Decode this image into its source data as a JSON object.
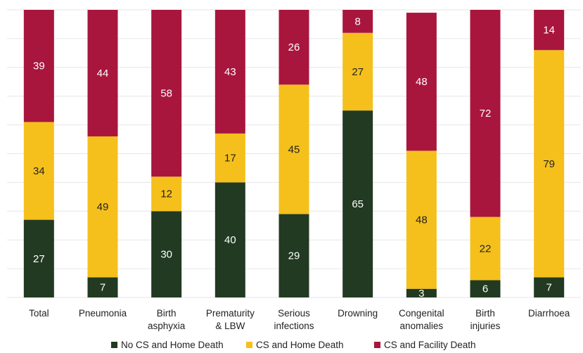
{
  "chart_data": {
    "type": "bar",
    "stacked": true,
    "normalized": true,
    "categories": [
      [
        "Total"
      ],
      [
        "Pneumonia"
      ],
      [
        "Birth",
        "asphyxia"
      ],
      [
        "Prematurity",
        "& LBW"
      ],
      [
        "Serious",
        "infections"
      ],
      [
        "Drowning"
      ],
      [
        "Congenital",
        "anomalies"
      ],
      [
        "Birth",
        "injuries"
      ],
      [
        "Diarrhoea"
      ]
    ],
    "series": [
      {
        "name": "No CS and Home Death",
        "color": "#213a21",
        "values": [
          27,
          7,
          30,
          40,
          29,
          65,
          3,
          6,
          7
        ]
      },
      {
        "name": "CS and Home Death",
        "color": "#f5c01c",
        "values": [
          34,
          49,
          12,
          17,
          45,
          27,
          48,
          22,
          79
        ]
      },
      {
        "name": "CS and Facility Death",
        "color": "#a8163d",
        "values": [
          39,
          44,
          58,
          43,
          26,
          8,
          48,
          72,
          14
        ]
      }
    ],
    "ylim": [
      0,
      100
    ],
    "grid": true,
    "legend": "bottom-center",
    "title": "",
    "xlabel": "",
    "ylabel": ""
  }
}
